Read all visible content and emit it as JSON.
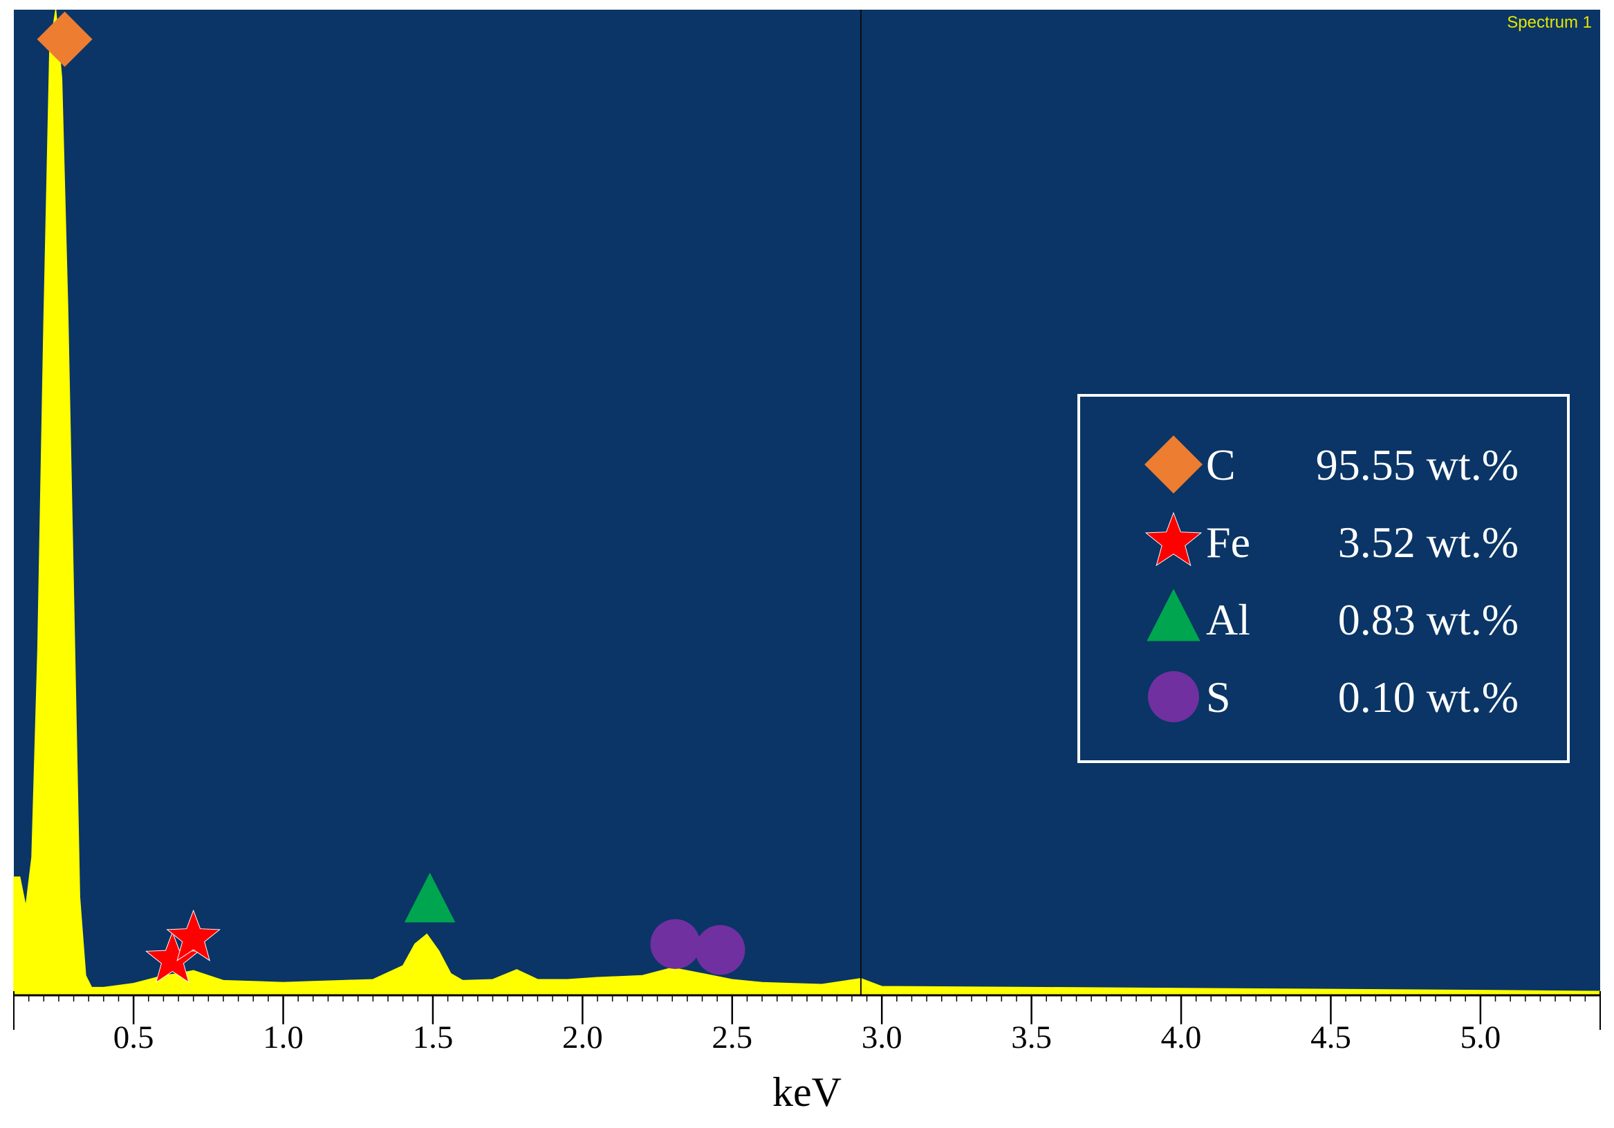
{
  "chart_data": {
    "type": "area",
    "title": "",
    "spectrum_label": "Spectrum 1",
    "xlabel": "keV",
    "ylabel": "",
    "xlim": [
      0.1,
      5.4
    ],
    "x_ticks": [
      "0.5",
      "1.0",
      "1.5",
      "2.0",
      "2.5",
      "3.0",
      "3.5",
      "4.0",
      "4.5",
      "5.0"
    ],
    "background_color": "#0a3566",
    "spectrum_color": "#ffff00",
    "cursor_x": 2.93,
    "spectrum": {
      "x": [
        0.1,
        0.12,
        0.14,
        0.16,
        0.18,
        0.2,
        0.22,
        0.24,
        0.26,
        0.28,
        0.3,
        0.32,
        0.34,
        0.36,
        0.4,
        0.45,
        0.5,
        0.55,
        0.6,
        0.65,
        0.7,
        0.75,
        0.8,
        0.9,
        1.0,
        1.1,
        1.2,
        1.3,
        1.4,
        1.44,
        1.48,
        1.52,
        1.56,
        1.6,
        1.7,
        1.78,
        1.85,
        1.95,
        2.05,
        2.2,
        2.3,
        2.4,
        2.5,
        2.6,
        2.8,
        2.93,
        3.0,
        3.5,
        4.0,
        4.5,
        5.0,
        5.4
      ],
      "y": [
        0.12,
        0.12,
        0.09,
        0.14,
        0.35,
        0.68,
        0.96,
        1.0,
        0.93,
        0.7,
        0.4,
        0.1,
        0.02,
        0.008,
        0.008,
        0.01,
        0.012,
        0.016,
        0.02,
        0.022,
        0.025,
        0.02,
        0.015,
        0.014,
        0.013,
        0.014,
        0.015,
        0.016,
        0.03,
        0.052,
        0.062,
        0.045,
        0.022,
        0.015,
        0.016,
        0.026,
        0.016,
        0.016,
        0.018,
        0.02,
        0.028,
        0.022,
        0.016,
        0.013,
        0.011,
        0.017,
        0.009,
        0.008,
        0.007,
        0.006,
        0.005,
        0.004
      ]
    },
    "peak_markers": [
      {
        "element": "C",
        "shape": "diamond",
        "color": "#ed7d31",
        "x": 0.27,
        "y": 0.97
      },
      {
        "element": "Fe",
        "shape": "star",
        "color": "#ff0000",
        "x": 0.63,
        "y": 0.036
      },
      {
        "element": "Fe",
        "shape": "star",
        "color": "#ff0000",
        "x": 0.7,
        "y": 0.058
      },
      {
        "element": "Al",
        "shape": "triangle",
        "color": "#00a550",
        "x": 1.49,
        "y": 0.095
      },
      {
        "element": "S",
        "shape": "circle",
        "color": "#7030a0",
        "x": 2.31,
        "y": 0.052
      },
      {
        "element": "S",
        "shape": "circle",
        "color": "#7030a0",
        "x": 2.46,
        "y": 0.046
      }
    ],
    "legend": {
      "placement": "right",
      "entries": [
        {
          "element": "C",
          "value": "95.55 wt.%",
          "shape": "diamond",
          "color": "#ed7d31"
        },
        {
          "element": "Fe",
          "value": "3.52 wt.%",
          "shape": "star",
          "color": "#ff0000"
        },
        {
          "element": "Al",
          "value": "0.83 wt.%",
          "shape": "triangle",
          "color": "#00a550"
        },
        {
          "element": "S",
          "value": "0.10 wt.%",
          "shape": "circle",
          "color": "#7030a0"
        }
      ]
    }
  }
}
